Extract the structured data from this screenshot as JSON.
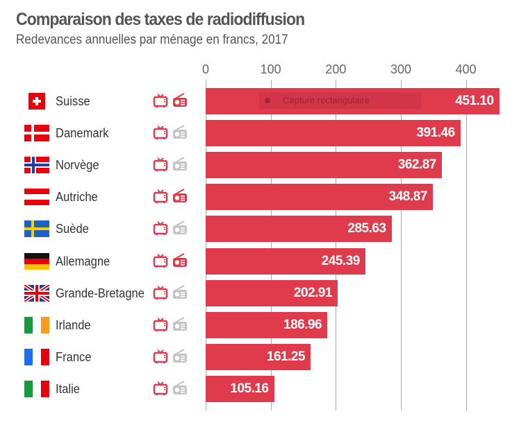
{
  "chart_data": {
    "type": "bar",
    "orientation": "horizontal",
    "title": "Comparaison des taxes de radiodiffusion",
    "subtitle": "Redevances annuelles par ménage en francs, 2017",
    "xlim": [
      0,
      455
    ],
    "ticks": [
      "0",
      "100",
      "200",
      "300",
      "400"
    ],
    "tick_values": [
      0,
      100,
      200,
      300,
      400
    ],
    "bar_color": "#e03a4d",
    "rows": [
      {
        "country": "Suisse",
        "value": 451.1,
        "label": "451.10",
        "flag": "ch",
        "tv": true,
        "radio": true
      },
      {
        "country": "Danemark",
        "value": 391.46,
        "label": "391.46",
        "flag": "dk",
        "tv": true,
        "radio": false
      },
      {
        "country": "Norvège",
        "value": 362.87,
        "label": "362.87",
        "flag": "no",
        "tv": true,
        "radio": false
      },
      {
        "country": "Autriche",
        "value": 348.87,
        "label": "348.87",
        "flag": "at",
        "tv": true,
        "radio": true
      },
      {
        "country": "Suède",
        "value": 285.63,
        "label": "285.63",
        "flag": "se",
        "tv": true,
        "radio": false
      },
      {
        "country": "Allemagne",
        "value": 245.39,
        "label": "245.39",
        "flag": "de",
        "tv": true,
        "radio": true
      },
      {
        "country": "Grande-Bretagne",
        "value": 202.91,
        "label": "202.91",
        "flag": "gb",
        "tv": true,
        "radio": false
      },
      {
        "country": "Irlande",
        "value": 186.96,
        "label": "186.96",
        "flag": "ie",
        "tv": true,
        "radio": false
      },
      {
        "country": "France",
        "value": 161.25,
        "label": "161.25",
        "flag": "fr",
        "tv": true,
        "radio": false
      },
      {
        "country": "Italie",
        "value": 105.16,
        "label": "105.16",
        "flag": "it",
        "tv": true,
        "radio": false
      }
    ]
  },
  "overlay": {
    "label": "Capture rectangulaire"
  },
  "colors": {
    "active_icon": "#e03a4d",
    "inactive_icon": "#c4c4c4"
  }
}
